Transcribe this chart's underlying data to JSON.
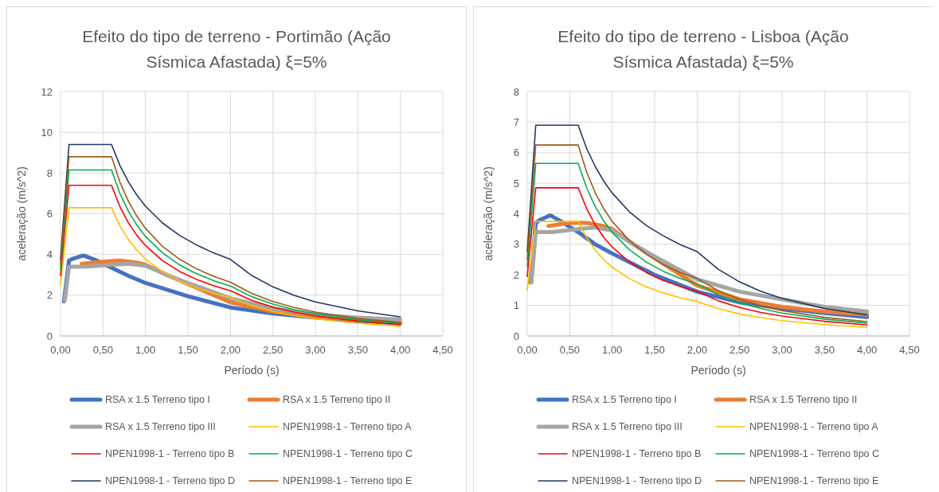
{
  "chart_data": [
    {
      "type": "line",
      "title": "Efeito do tipo de terreno - Portimão (Ação Sísmica Afastada) ξ=5%",
      "xlabel": "Período (s)",
      "ylabel": "aceleração (m/s^2)",
      "xlim": [
        0,
        4.5
      ],
      "xticks": [
        {
          "value": 0,
          "label": "0,00"
        },
        {
          "value": 0.5,
          "label": "0,50"
        },
        {
          "value": 1,
          "label": "1,00"
        },
        {
          "value": 1.5,
          "label": "1,50"
        },
        {
          "value": 2,
          "label": "2,00"
        },
        {
          "value": 2.5,
          "label": "2,50"
        },
        {
          "value": 3,
          "label": "3,00"
        },
        {
          "value": 3.5,
          "label": "3,50"
        },
        {
          "value": 4,
          "label": "4,00"
        },
        {
          "value": 4.5,
          "label": "4,50"
        }
      ],
      "ylim": [
        0,
        12
      ],
      "yticks": [
        0,
        2,
        4,
        6,
        8,
        10,
        12
      ],
      "grid": true,
      "legend": "bottom",
      "marker": "none",
      "line_style": "solid",
      "series": [
        {
          "name": "RSA x 1.5 Terreno tipo I",
          "color": "#4472c4",
          "x": [
            0.04,
            0.1,
            0.15,
            0.27,
            0.4,
            0.6,
            0.8,
            1.0,
            1.5,
            2.0,
            2.5,
            3.0,
            3.5,
            4.0
          ],
          "values": [
            1.7,
            3.7,
            3.8,
            3.95,
            3.75,
            3.35,
            2.95,
            2.6,
            1.95,
            1.4,
            1.1,
            0.9,
            0.75,
            0.62
          ]
        },
        {
          "name": "RSA x 1.5 Terreno tipo II",
          "color": "#ed7d31",
          "x": [
            0.25,
            0.5,
            0.7,
            0.9,
            1.0,
            1.25,
            1.5,
            2.0,
            2.5,
            3.0,
            3.5,
            4.0
          ],
          "values": [
            3.55,
            3.65,
            3.7,
            3.6,
            3.5,
            3.0,
            2.55,
            1.65,
            1.2,
            0.95,
            0.8,
            0.65
          ]
        },
        {
          "name": "RSA x 1.5 Terreno tipo III",
          "color": "#a5a5a5",
          "x": [
            0.05,
            0.1,
            0.3,
            0.6,
            0.8,
            1.0,
            1.25,
            1.5,
            2.0,
            2.5,
            3.0,
            3.5,
            4.0
          ],
          "values": [
            1.75,
            3.4,
            3.4,
            3.5,
            3.55,
            3.45,
            3.0,
            2.6,
            1.85,
            1.35,
            1.05,
            0.9,
            0.8
          ]
        },
        {
          "name": "NPEN1998-1 - Terreno tipo A",
          "color": "#ffc000",
          "x": [
            0,
            0.1,
            0.6,
            0.7,
            0.8,
            0.9,
            1.0,
            1.2,
            1.4,
            1.6,
            1.8,
            2.0,
            2.25,
            2.5,
            2.75,
            3.0,
            3.5,
            4.0
          ],
          "values": [
            2.52,
            6.3,
            6.3,
            5.4,
            4.73,
            4.2,
            3.78,
            3.15,
            2.7,
            2.36,
            2.1,
            1.89,
            1.49,
            1.21,
            1.0,
            0.84,
            0.62,
            0.47
          ]
        },
        {
          "name": "NPEN1998-1 - Terreno tipo B",
          "color": "#ff0000",
          "x": [
            0,
            0.1,
            0.6,
            0.7,
            0.8,
            0.9,
            1.0,
            1.2,
            1.4,
            1.6,
            1.8,
            2.0,
            2.25,
            2.5,
            2.75,
            3.0,
            3.5,
            4.0
          ],
          "values": [
            2.96,
            7.4,
            7.4,
            6.34,
            5.55,
            4.93,
            4.44,
            3.7,
            3.17,
            2.78,
            2.47,
            2.22,
            1.75,
            1.42,
            1.17,
            0.99,
            0.73,
            0.56
          ]
        },
        {
          "name": "NPEN1998-1 - Terreno tipo C",
          "color": "#00b050",
          "x": [
            0,
            0.1,
            0.6,
            0.7,
            0.8,
            0.9,
            1.0,
            1.2,
            1.4,
            1.6,
            1.8,
            2.0,
            2.25,
            2.5,
            2.75,
            3.0,
            3.5,
            4.0
          ],
          "values": [
            3.26,
            8.15,
            8.15,
            6.99,
            6.11,
            5.43,
            4.89,
            4.08,
            3.49,
            3.06,
            2.72,
            2.45,
            1.93,
            1.56,
            1.29,
            1.09,
            0.8,
            0.61
          ]
        },
        {
          "name": "NPEN1998-1 - Terreno tipo D",
          "color": "#203864",
          "x": [
            0,
            0.1,
            0.6,
            0.7,
            0.8,
            0.9,
            1.0,
            1.2,
            1.4,
            1.6,
            1.8,
            2.0,
            2.25,
            2.5,
            2.75,
            3.0,
            3.5,
            4.0
          ],
          "values": [
            3.76,
            9.4,
            9.4,
            8.36,
            7.56,
            6.91,
            6.37,
            5.55,
            4.94,
            4.47,
            4.08,
            3.76,
            2.97,
            2.41,
            1.99,
            1.67,
            1.23,
            0.94
          ]
        },
        {
          "name": "NPEN1998-1 - Terreno tipo E",
          "color": "#9c5a1e",
          "x": [
            0,
            0.1,
            0.6,
            0.7,
            0.8,
            0.9,
            1.0,
            1.2,
            1.4,
            1.6,
            1.8,
            2.0,
            2.25,
            2.5,
            2.75,
            3.0,
            3.5,
            4.0
          ],
          "values": [
            3.52,
            8.8,
            8.8,
            7.54,
            6.6,
            5.87,
            5.28,
            4.4,
            3.77,
            3.3,
            2.93,
            2.64,
            2.09,
            1.69,
            1.4,
            1.17,
            0.86,
            0.66
          ]
        }
      ]
    },
    {
      "type": "line",
      "title": "Efeito do tipo de terreno - Lisboa (Ação Sísmica Afastada) ξ=5%",
      "xlabel": "Período (s)",
      "ylabel": "aceleração (m/s^2)",
      "xlim": [
        0,
        4.5
      ],
      "xticks": [
        {
          "value": 0,
          "label": "0,00"
        },
        {
          "value": 0.5,
          "label": "0,50"
        },
        {
          "value": 1,
          "label": "1,00"
        },
        {
          "value": 1.5,
          "label": "1,50"
        },
        {
          "value": 2,
          "label": "2,00"
        },
        {
          "value": 2.5,
          "label": "2,50"
        },
        {
          "value": 3,
          "label": "3,00"
        },
        {
          "value": 3.5,
          "label": "3,50"
        },
        {
          "value": 4,
          "label": "4,00"
        },
        {
          "value": 4.5,
          "label": "4,50"
        }
      ],
      "ylim": [
        0,
        8
      ],
      "yticks": [
        0,
        1,
        2,
        3,
        4,
        5,
        6,
        7,
        8
      ],
      "grid": true,
      "legend": "bottom",
      "marker": "none",
      "line_style": "solid",
      "series": [
        {
          "name": "RSA x 1.5 Terreno tipo I",
          "color": "#4472c4",
          "x": [
            0.04,
            0.1,
            0.15,
            0.27,
            0.4,
            0.6,
            0.8,
            1.0,
            1.5,
            2.0,
            2.5,
            3.0,
            3.5,
            4.0
          ],
          "values": [
            1.75,
            3.7,
            3.8,
            3.95,
            3.75,
            3.4,
            3.0,
            2.7,
            2.0,
            1.45,
            1.1,
            0.9,
            0.75,
            0.62
          ]
        },
        {
          "name": "RSA x 1.5 Terreno tipo II",
          "color": "#ed7d31",
          "x": [
            0.25,
            0.5,
            0.7,
            0.9,
            1.0,
            1.25,
            1.5,
            2.0,
            2.5,
            3.0,
            3.5,
            4.0
          ],
          "values": [
            3.6,
            3.7,
            3.7,
            3.6,
            3.5,
            3.0,
            2.55,
            1.65,
            1.2,
            0.95,
            0.8,
            0.7
          ]
        },
        {
          "name": "RSA x 1.5 Terreno tipo III",
          "color": "#a5a5a5",
          "x": [
            0.05,
            0.1,
            0.3,
            0.6,
            0.8,
            1.0,
            1.25,
            1.5,
            2.0,
            2.5,
            3.0,
            3.5,
            4.0
          ],
          "values": [
            1.75,
            3.4,
            3.4,
            3.5,
            3.55,
            3.45,
            3.0,
            2.6,
            1.85,
            1.45,
            1.2,
            0.95,
            0.8
          ]
        },
        {
          "name": "NPEN1998-1 - Terreno tipo A",
          "color": "#ffc000",
          "x": [
            0,
            0.1,
            0.6,
            0.7,
            0.8,
            0.9,
            1.0,
            1.2,
            1.4,
            1.6,
            1.8,
            2.0,
            2.25,
            2.5,
            2.75,
            3.0,
            3.5,
            4.0
          ],
          "values": [
            1.5,
            3.75,
            3.75,
            3.21,
            2.81,
            2.5,
            2.25,
            1.88,
            1.61,
            1.41,
            1.25,
            1.13,
            0.89,
            0.72,
            0.6,
            0.5,
            0.37,
            0.28
          ]
        },
        {
          "name": "NPEN1998-1 - Terreno tipo B",
          "color": "#ff0000",
          "x": [
            0,
            0.1,
            0.6,
            0.7,
            0.8,
            0.9,
            1.0,
            1.2,
            1.4,
            1.6,
            1.8,
            2.0,
            2.25,
            2.5,
            2.75,
            3.0,
            3.5,
            4.0
          ],
          "values": [
            1.94,
            4.85,
            4.85,
            4.16,
            3.64,
            3.23,
            2.91,
            2.43,
            2.08,
            1.82,
            1.62,
            1.46,
            1.15,
            0.93,
            0.77,
            0.65,
            0.48,
            0.36
          ]
        },
        {
          "name": "NPEN1998-1 - Terreno tipo C",
          "color": "#00b050",
          "x": [
            0,
            0.1,
            0.6,
            0.7,
            0.8,
            0.9,
            1.0,
            1.2,
            1.4,
            1.6,
            1.8,
            2.0,
            2.25,
            2.5,
            2.75,
            3.0,
            3.5,
            4.0
          ],
          "values": [
            2.26,
            5.65,
            5.65,
            4.84,
            4.24,
            3.77,
            3.39,
            2.83,
            2.42,
            2.12,
            1.88,
            1.7,
            1.34,
            1.08,
            0.9,
            0.75,
            0.55,
            0.42
          ]
        },
        {
          "name": "NPEN1998-1 - Terreno tipo D",
          "color": "#203864",
          "x": [
            0,
            0.1,
            0.6,
            0.7,
            0.8,
            0.9,
            1.0,
            1.2,
            1.4,
            1.6,
            1.8,
            2.0,
            2.25,
            2.5,
            2.75,
            3.0,
            3.5,
            4.0
          ],
          "values": [
            2.76,
            6.9,
            6.9,
            6.13,
            5.55,
            5.07,
            4.68,
            4.07,
            3.62,
            3.28,
            2.99,
            2.76,
            2.18,
            1.77,
            1.46,
            1.23,
            0.9,
            0.69
          ]
        },
        {
          "name": "NPEN1998-1 - Terreno tipo E",
          "color": "#9c5a1e",
          "x": [
            0,
            0.1,
            0.6,
            0.7,
            0.8,
            0.9,
            1.0,
            1.2,
            1.4,
            1.6,
            1.8,
            2.0,
            2.25,
            2.5,
            2.75,
            3.0,
            3.5,
            4.0
          ],
          "values": [
            2.5,
            6.25,
            6.25,
            5.36,
            4.69,
            4.17,
            3.75,
            3.13,
            2.68,
            2.34,
            2.08,
            1.88,
            1.48,
            1.2,
            0.99,
            0.83,
            0.61,
            0.47
          ]
        }
      ]
    }
  ]
}
